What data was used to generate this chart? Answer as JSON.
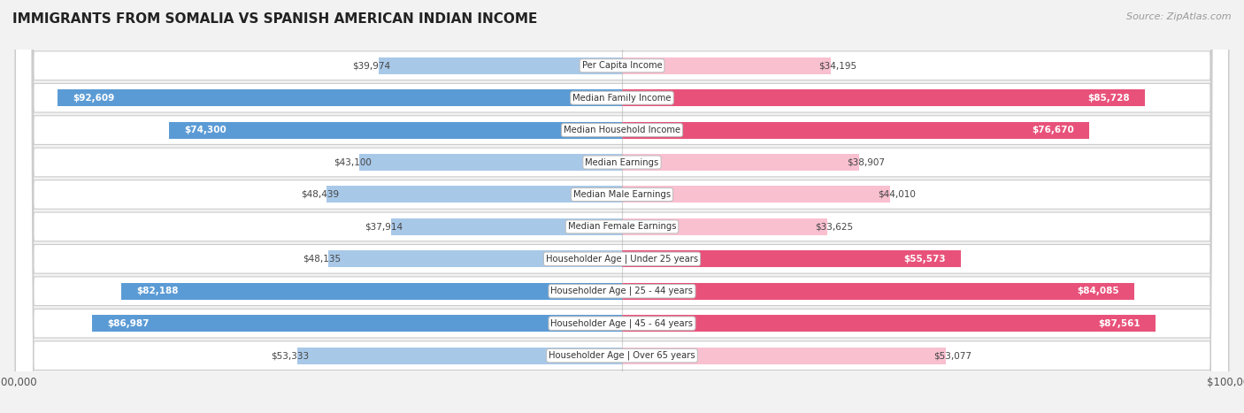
{
  "title": "IMMIGRANTS FROM SOMALIA VS SPANISH AMERICAN INDIAN INCOME",
  "source": "Source: ZipAtlas.com",
  "categories": [
    "Per Capita Income",
    "Median Family Income",
    "Median Household Income",
    "Median Earnings",
    "Median Male Earnings",
    "Median Female Earnings",
    "Householder Age | Under 25 years",
    "Householder Age | 25 - 44 years",
    "Householder Age | 45 - 64 years",
    "Householder Age | Over 65 years"
  ],
  "somalia_values": [
    39974,
    92609,
    74300,
    43100,
    48439,
    37914,
    48135,
    82188,
    86987,
    53333
  ],
  "spanish_values": [
    34195,
    85728,
    76670,
    38907,
    44010,
    33625,
    55573,
    84085,
    87561,
    53077
  ],
  "somalia_labels": [
    "$39,974",
    "$92,609",
    "$74,300",
    "$43,100",
    "$48,439",
    "$37,914",
    "$48,135",
    "$82,188",
    "$86,987",
    "$53,333"
  ],
  "spanish_labels": [
    "$34,195",
    "$85,728",
    "$76,670",
    "$38,907",
    "$44,010",
    "$33,625",
    "$55,573",
    "$84,085",
    "$87,561",
    "$53,077"
  ],
  "max_value": 100000,
  "somalia_color_light": "#a8c8e8",
  "somalia_color_dark": "#5b9bd5",
  "spanish_color_light": "#f9c0d0",
  "spanish_color_dark": "#e8527a",
  "inside_label_threshold": 55000,
  "bg_color": "#f2f2f2",
  "row_bg": "#ffffff",
  "row_border": "#d0d0d0",
  "label_outside_color": "#444444",
  "label_inside_color": "#ffffff"
}
